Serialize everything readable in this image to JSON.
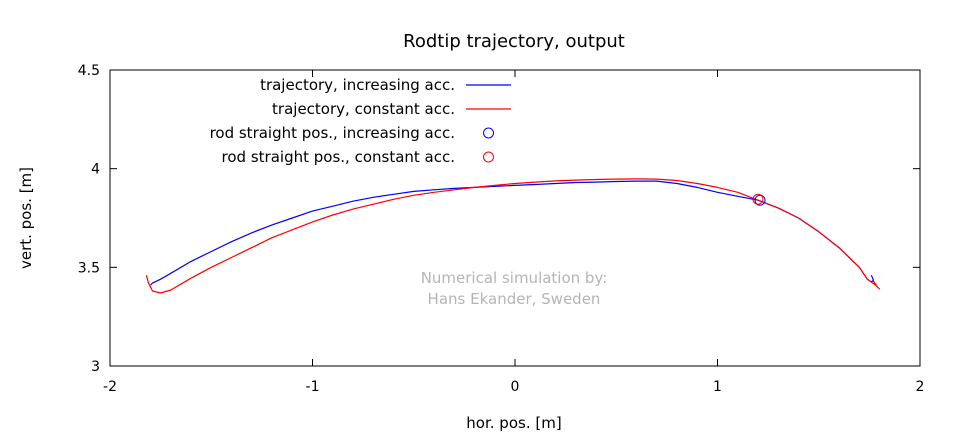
{
  "chart_data": {
    "type": "line",
    "title": "Rodtip trajectory, output",
    "xlabel": "hor. pos. [m]",
    "ylabel": "vert. pos. [m]",
    "xlim": [
      -2,
      2
    ],
    "ylim": [
      3,
      4.5
    ],
    "xticks": [
      "-2",
      "-1",
      "0",
      "1",
      "2"
    ],
    "yticks": [
      "3",
      "3.5",
      "4",
      "4.5"
    ],
    "grid": false,
    "legend_position": "top-left",
    "annotation": [
      "Numerical simulation by:",
      "Hans Ekander, Sweden"
    ],
    "series": [
      {
        "name": "trajectory, increasing acc.",
        "kind": "line",
        "color": "#0000ff",
        "x": [
          -1.8,
          -1.79,
          -1.75,
          -1.7,
          -1.6,
          -1.5,
          -1.4,
          -1.3,
          -1.2,
          -1.1,
          -1.0,
          -0.9,
          -0.8,
          -0.7,
          -0.6,
          -0.5,
          -0.4,
          -0.3,
          -0.2,
          -0.1,
          0.0,
          0.1,
          0.2,
          0.3,
          0.4,
          0.5,
          0.6,
          0.7,
          0.8,
          0.9,
          1.0,
          1.1,
          1.2,
          1.3,
          1.4,
          1.5,
          1.6,
          1.7,
          1.74,
          1.76,
          1.77,
          1.76
        ],
        "y": [
          3.41,
          3.42,
          3.44,
          3.47,
          3.53,
          3.58,
          3.63,
          3.675,
          3.715,
          3.75,
          3.785,
          3.81,
          3.835,
          3.855,
          3.87,
          3.885,
          3.893,
          3.9,
          3.905,
          3.91,
          3.915,
          3.92,
          3.925,
          3.93,
          3.932,
          3.935,
          3.937,
          3.937,
          3.925,
          3.905,
          3.88,
          3.86,
          3.84,
          3.8,
          3.75,
          3.68,
          3.6,
          3.5,
          3.44,
          3.425,
          3.435,
          3.46
        ]
      },
      {
        "name": "trajectory, constant acc.",
        "kind": "line",
        "color": "#ff0000",
        "x": [
          -1.82,
          -1.81,
          -1.79,
          -1.75,
          -1.7,
          -1.6,
          -1.5,
          -1.4,
          -1.3,
          -1.2,
          -1.1,
          -1.0,
          -0.9,
          -0.8,
          -0.7,
          -0.6,
          -0.5,
          -0.4,
          -0.3,
          -0.2,
          -0.1,
          0.0,
          0.1,
          0.2,
          0.3,
          0.4,
          0.5,
          0.6,
          0.7,
          0.8,
          0.9,
          1.0,
          1.1,
          1.2,
          1.3,
          1.4,
          1.5,
          1.6,
          1.7,
          1.74,
          1.78,
          1.8,
          1.79,
          1.77
        ],
        "y": [
          3.46,
          3.42,
          3.38,
          3.37,
          3.385,
          3.445,
          3.5,
          3.55,
          3.6,
          3.65,
          3.69,
          3.73,
          3.765,
          3.795,
          3.82,
          3.845,
          3.865,
          3.88,
          3.893,
          3.905,
          3.915,
          3.925,
          3.932,
          3.938,
          3.942,
          3.945,
          3.947,
          3.948,
          3.947,
          3.94,
          3.925,
          3.905,
          3.88,
          3.84,
          3.8,
          3.75,
          3.68,
          3.6,
          3.5,
          3.44,
          3.41,
          3.39,
          3.4,
          3.43
        ]
      },
      {
        "name": "rod straight pos., increasing acc.",
        "kind": "point",
        "color": "#0000ff",
        "x": [
          1.21
        ],
        "y": [
          3.84
        ]
      },
      {
        "name": "rod straight pos., constant acc.",
        "kind": "point",
        "color": "#ff0000",
        "x": [
          1.2
        ],
        "y": [
          3.845
        ]
      }
    ]
  }
}
